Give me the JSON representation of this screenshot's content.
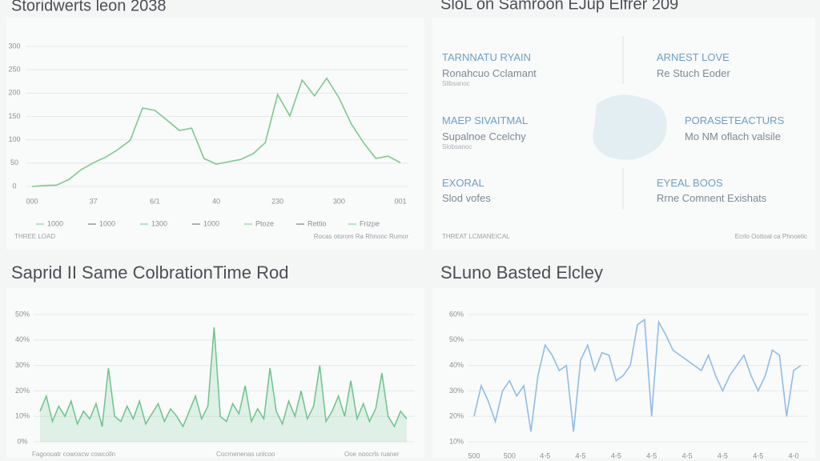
{
  "chart_data": [
    {
      "type": "line",
      "title": "Storidwerts leon 2038",
      "color": "#7cc98e",
      "x": [
        0,
        2,
        4,
        6,
        8,
        10,
        12,
        14,
        16,
        18,
        20,
        22,
        24,
        26,
        28,
        30,
        32,
        34,
        36,
        38,
        40,
        42,
        44,
        46,
        48,
        50,
        52,
        54,
        56,
        58,
        60
      ],
      "values": [
        0,
        2,
        3,
        15,
        36,
        51,
        63,
        79,
        99,
        168,
        163,
        142,
        120,
        125,
        60,
        48,
        53,
        58,
        70,
        94,
        197,
        151,
        228,
        194,
        232,
        190,
        134,
        94,
        60,
        65,
        51
      ],
      "xlim": [
        0,
        60
      ],
      "ylim": [
        0,
        300
      ],
      "xticks": [
        {
          "value": 0,
          "label": "000"
        },
        {
          "value": 10,
          "label": "37"
        },
        {
          "value": 20,
          "label": "6/1"
        },
        {
          "value": 30,
          "label": "40"
        },
        {
          "value": 40,
          "label": "230"
        },
        {
          "value": 50,
          "label": "300"
        },
        {
          "value": 60,
          "label": "001"
        }
      ],
      "yticks": [
        0,
        50,
        100,
        150,
        200,
        250,
        300
      ],
      "legend_labels": [
        "1000",
        "1000",
        "1300",
        "1000",
        "Ptoze",
        "Rettio",
        "Frizpe"
      ],
      "notes": [
        "THREE LOAD",
        "Rocas otorom Ra Rhnonc Rumor"
      ],
      "grid": true
    },
    {
      "type": "area",
      "title": "Saprid II Same ColbrationTime Rod",
      "color": "#6cc48a",
      "x": [
        0,
        1,
        2,
        3,
        4,
        5,
        6,
        7,
        8,
        9,
        10,
        11,
        12,
        13,
        14,
        15,
        16,
        17,
        18,
        19,
        20,
        21,
        22,
        23,
        24,
        25,
        26,
        27,
        28,
        29,
        30,
        31,
        32,
        33,
        34,
        35,
        36,
        37,
        38,
        39,
        40,
        41,
        42,
        43,
        44,
        45,
        46,
        47,
        48,
        49,
        50,
        51,
        52,
        53,
        54,
        55,
        56,
        57,
        58,
        59
      ],
      "values": [
        12,
        18,
        8,
        14,
        10,
        16,
        7,
        12,
        9,
        15,
        6,
        29,
        10,
        8,
        14,
        9,
        16,
        7,
        11,
        15,
        8,
        13,
        10,
        6,
        12,
        18,
        9,
        14,
        45,
        10,
        8,
        15,
        11,
        22,
        8,
        13,
        9,
        29,
        12,
        7,
        16,
        10,
        20,
        9,
        14,
        30,
        8,
        12,
        18,
        10,
        24,
        9,
        15,
        8,
        13,
        27,
        10,
        6,
        12,
        9
      ],
      "xlim": [
        0,
        59
      ],
      "ylim": [
        0,
        50
      ],
      "yticks": [
        {
          "value": 0,
          "label": "0%"
        },
        {
          "value": 10,
          "label": "10%"
        },
        {
          "value": 20,
          "label": "20%"
        },
        {
          "value": 30,
          "label": "30%"
        },
        {
          "value": 40,
          "label": "40%"
        },
        {
          "value": 50,
          "label": "50%"
        }
      ],
      "notes": [
        "Fagoouatr cowoscw cowcolln",
        "Cocrnenenas unlcoo",
        "Ooe noocrls ruaner"
      ],
      "grid": true
    },
    {
      "type": "line",
      "title": "SLuno Basted Elcley",
      "color": "#8fbde6",
      "x": [
        0,
        1,
        2,
        3,
        4,
        5,
        6,
        7,
        8,
        9,
        10,
        11,
        12,
        13,
        14,
        15,
        16,
        17,
        18,
        19,
        20,
        21,
        22,
        23,
        24,
        25,
        26,
        27,
        28,
        29,
        30,
        31,
        32,
        33,
        34,
        35,
        36,
        37,
        38,
        39,
        40,
        41,
        42,
        43,
        44,
        45,
        46
      ],
      "values": [
        20,
        32,
        26,
        18,
        30,
        34,
        28,
        32,
        14,
        36,
        48,
        44,
        38,
        40,
        14,
        42,
        48,
        38,
        45,
        44,
        34,
        36,
        40,
        56,
        58,
        20,
        57,
        52,
        46,
        44,
        42,
        40,
        38,
        44,
        36,
        30,
        36,
        40,
        44,
        36,
        30,
        36,
        46,
        44,
        20,
        38,
        40
      ],
      "xlim": [
        0,
        46
      ],
      "ylim": [
        10,
        60
      ],
      "xticks": [
        {
          "value": 0,
          "label": "500"
        },
        {
          "value": 5,
          "label": "500"
        },
        {
          "value": 10,
          "label": "4-5"
        },
        {
          "value": 15,
          "label": "4-5"
        },
        {
          "value": 20,
          "label": "4-5"
        },
        {
          "value": 25,
          "label": "4-5"
        },
        {
          "value": 30,
          "label": "4-5"
        },
        {
          "value": 35,
          "label": "4-5"
        },
        {
          "value": 40,
          "label": "4-5"
        },
        {
          "value": 45,
          "label": "4-0"
        }
      ],
      "yticks": [
        {
          "value": 10,
          "label": "10%"
        },
        {
          "value": 20,
          "label": "20%"
        },
        {
          "value": 30,
          "label": "30%"
        },
        {
          "value": 40,
          "label": "40%"
        },
        {
          "value": 50,
          "label": "50%"
        },
        {
          "value": 60,
          "label": "60%"
        }
      ],
      "grid": true
    }
  ],
  "info_panel": {
    "title": "SloL on Samroon EJup Elfrer 209",
    "cells": [
      {
        "heading": "TARNNATU RYAIN",
        "text": "Ronahcuo Cclamant",
        "sub": "Slibsanoc"
      },
      {
        "heading": "ARNEST LOVE",
        "text": "Re Stuch Eoder"
      },
      {
        "heading": "MAEP SIVAITMAL",
        "text": "Supalnoe Ccelchy",
        "sub": "Slobsanoc"
      },
      {
        "heading": "PORASETEACTURS",
        "text": "Mo NM oflach valsile"
      },
      {
        "heading": "EXORAL",
        "text": "Slod vofes"
      },
      {
        "heading": "EYEAL BOOS",
        "text": "Rrne Comnent Exishats"
      }
    ],
    "notes": [
      "THREAT LCMANEICAL",
      "Ecrlo Oottoal ca Phnoetic"
    ]
  }
}
